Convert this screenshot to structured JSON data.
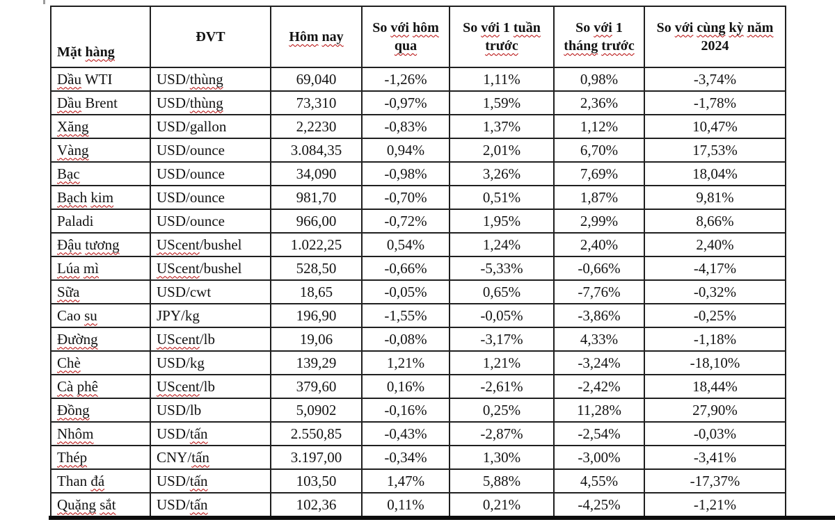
{
  "document": {
    "background": "#ffffff",
    "bottom_rule_color": "#0d0d0d"
  },
  "table": {
    "border_color": "#1f1f1f",
    "squiggle_color": "#b30000",
    "columns": [
      {
        "label": "Mặt hàng"
      },
      {
        "label": "ĐVT"
      },
      {
        "label": "Hôm nay"
      },
      {
        "label": "So với hôm qua"
      },
      {
        "label": "So với 1 tuần trước"
      },
      {
        "label": "So với 1 tháng trước"
      },
      {
        "label": "So với cùng kỳ năm 2024"
      }
    ],
    "spellcheck_words": [
      "hàng",
      "Hôm",
      "nay",
      "với",
      "hôm",
      "qua",
      "tuần",
      "trước",
      "tháng",
      "cùng",
      "kỳ",
      "năm",
      "Dầu",
      "Xăng",
      "Vàng",
      "Bạc",
      "Bạch",
      "kim",
      "Đậu",
      "tương",
      "Lúa",
      "mì",
      "Sữa",
      "su",
      "Đường",
      "Chè",
      "Cà",
      "phê",
      "Đồng",
      "Nhôm",
      "Thép",
      "đá",
      "Quặng",
      "sắt",
      "thùng",
      "tấn",
      "UScent"
    ],
    "rows": [
      {
        "name": "Dầu WTI",
        "unit": "USD/thùng",
        "today": "69,040",
        "vs_yesterday": "-1,26%",
        "vs_week": "1,11%",
        "vs_month": "0,98%",
        "vs_year": "-3,74%"
      },
      {
        "name": "Dầu Brent",
        "unit": "USD/thùng",
        "today": "73,310",
        "vs_yesterday": "-0,97%",
        "vs_week": "1,59%",
        "vs_month": "2,36%",
        "vs_year": "-1,78%"
      },
      {
        "name": "Xăng",
        "unit": "USD/gallon",
        "today": "2,2230",
        "vs_yesterday": "-0,83%",
        "vs_week": "1,37%",
        "vs_month": "1,12%",
        "vs_year": "10,47%"
      },
      {
        "name": "Vàng",
        "unit": "USD/ounce",
        "today": "3.084,35",
        "vs_yesterday": "0,94%",
        "vs_week": "2,01%",
        "vs_month": "6,70%",
        "vs_year": "17,53%"
      },
      {
        "name": "Bạc",
        "unit": "USD/ounce",
        "today": "34,090",
        "vs_yesterday": "-0,98%",
        "vs_week": "3,26%",
        "vs_month": "7,69%",
        "vs_year": "18,04%"
      },
      {
        "name": "Bạch kim",
        "unit": "USD/ounce",
        "today": "981,70",
        "vs_yesterday": "-0,70%",
        "vs_week": "0,51%",
        "vs_month": "1,87%",
        "vs_year": "9,81%"
      },
      {
        "name": "Paladi",
        "unit": "USD/ounce",
        "today": "966,00",
        "vs_yesterday": "-0,72%",
        "vs_week": "1,95%",
        "vs_month": "2,99%",
        "vs_year": "8,66%"
      },
      {
        "name": "Đậu tương",
        "unit": "UScent/bushel",
        "today": "1.022,25",
        "vs_yesterday": "0,54%",
        "vs_week": "1,24%",
        "vs_month": "2,40%",
        "vs_year": "2,40%"
      },
      {
        "name": "Lúa mì",
        "unit": "UScent/bushel",
        "today": "528,50",
        "vs_yesterday": "-0,66%",
        "vs_week": "-5,33%",
        "vs_month": "-0,66%",
        "vs_year": "-4,17%"
      },
      {
        "name": "Sữa",
        "unit": "USD/cwt",
        "today": "18,65",
        "vs_yesterday": "-0,05%",
        "vs_week": "0,65%",
        "vs_month": "-7,76%",
        "vs_year": "-0,32%"
      },
      {
        "name": "Cao su",
        "unit": "JPY/kg",
        "today": "196,90",
        "vs_yesterday": "-1,55%",
        "vs_week": "-0,05%",
        "vs_month": "-3,86%",
        "vs_year": "-0,25%"
      },
      {
        "name": "Đường",
        "unit": "UScent/lb",
        "today": "19,06",
        "vs_yesterday": "-0,08%",
        "vs_week": "-3,17%",
        "vs_month": "4,33%",
        "vs_year": "-1,18%"
      },
      {
        "name": "Chè",
        "unit": "USD/kg",
        "today": "139,29",
        "vs_yesterday": "1,21%",
        "vs_week": "1,21%",
        "vs_month": "-3,24%",
        "vs_year": "-18,10%"
      },
      {
        "name": "Cà phê",
        "unit": "UScent/lb",
        "today": "379,60",
        "vs_yesterday": "0,16%",
        "vs_week": "-2,61%",
        "vs_month": "-2,42%",
        "vs_year": "18,44%"
      },
      {
        "name": "Đồng",
        "unit": "USD/lb",
        "today": "5,0902",
        "vs_yesterday": "-0,16%",
        "vs_week": "0,25%",
        "vs_month": "11,28%",
        "vs_year": "27,90%"
      },
      {
        "name": "Nhôm",
        "unit": "USD/tấn",
        "today": "2.550,85",
        "vs_yesterday": "-0,43%",
        "vs_week": "-2,87%",
        "vs_month": "-2,54%",
        "vs_year": "-0,03%"
      },
      {
        "name": "Thép",
        "unit": "CNY/tấn",
        "today": "3.197,00",
        "vs_yesterday": "-0,34%",
        "vs_week": "1,30%",
        "vs_month": "-3,00%",
        "vs_year": "-3,41%"
      },
      {
        "name": "Than đá",
        "unit": "USD/tấn",
        "today": "103,50",
        "vs_yesterday": "1,47%",
        "vs_week": "5,88%",
        "vs_month": "4,55%",
        "vs_year": "-17,37%"
      },
      {
        "name": "Quặng sắt",
        "unit": "USD/tấn",
        "today": "102,36",
        "vs_yesterday": "0,11%",
        "vs_week": "0,21%",
        "vs_month": "-4,25%",
        "vs_year": "-1,21%"
      }
    ]
  }
}
